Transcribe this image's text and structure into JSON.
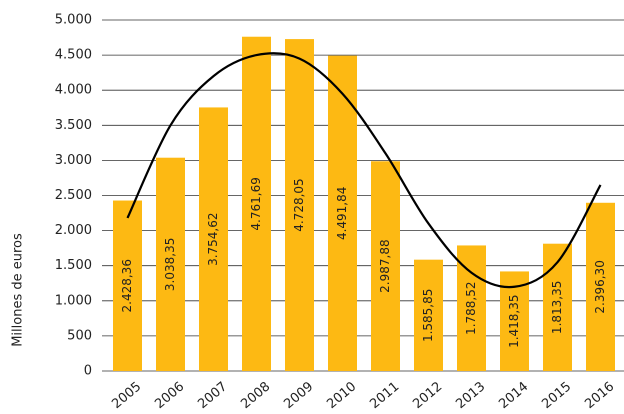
{
  "chart_data": {
    "type": "bar",
    "y_label": "Millones de euros",
    "categories": [
      "2005",
      "2006",
      "2007",
      "2008",
      "2009",
      "2010",
      "2011",
      "2012",
      "2013",
      "2014",
      "2015",
      "2016"
    ],
    "values": [
      2428.36,
      3038.35,
      3754.62,
      4761.69,
      4728.05,
      4491.84,
      2987.88,
      1585.85,
      1788.52,
      1418.35,
      1813.35,
      2396.3
    ],
    "value_labels": [
      "2.428,36",
      "3.038,35",
      "3.754,62",
      "4.761,69",
      "4.728,05",
      "4.491,84",
      "2.987,88",
      "1.585,85",
      "1.788,52",
      "1.418,35",
      "1.813,35",
      "2.396,30"
    ],
    "color": "#fdb913",
    "trend": {
      "values": [
        2180,
        3500,
        4200,
        4500,
        4450,
        3950,
        3100,
        2100,
        1400,
        1200,
        1550,
        2650
      ],
      "color": "#000000"
    },
    "ylim": [
      0,
      5000
    ],
    "yticks": [
      0,
      500,
      {
        "value": 1000,
        "label": "1.000"
      },
      {
        "value": 1500,
        "label": "1.500"
      },
      {
        "value": 2000,
        "label": "2.000"
      },
      {
        "value": 2500,
        "label": "2.500"
      },
      {
        "value": 3000,
        "label": "3.000"
      },
      {
        "value": 3500,
        "label": "3.500"
      },
      {
        "value": 4000,
        "label": "4.000"
      },
      {
        "value": 4500,
        "label": "4.500"
      },
      {
        "value": 5000,
        "label": "5.000"
      }
    ],
    "grid": true
  }
}
